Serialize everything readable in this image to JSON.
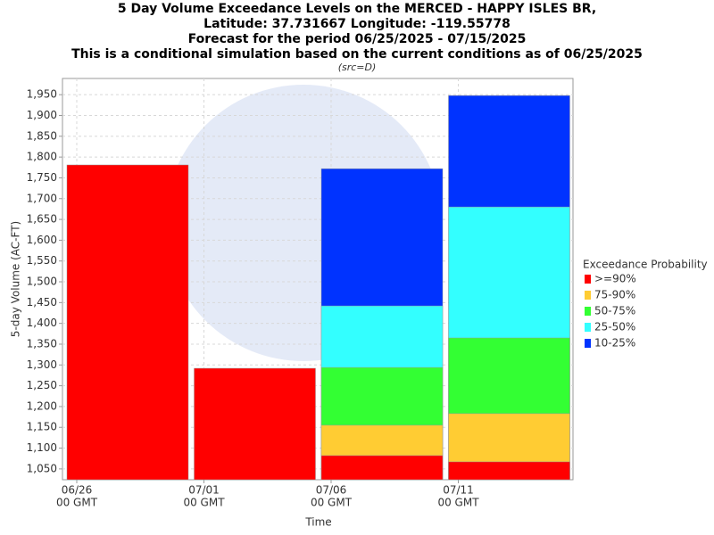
{
  "chart_data": {
    "type": "overlapping-bar",
    "title_lines": [
      "5 Day Volume Exceedance Levels on the MERCED - HAPPY ISLES BR,",
      "Latitude: 37.731667 Longitude: -119.55778",
      "Forecast for the period 06/25/2025 - 07/15/2025",
      "This is a conditional simulation based on the current conditions as of 06/25/2025"
    ],
    "subtitle": "(src=D)",
    "y_label": "5-day Volume (AC-FT)",
    "x_label": "Time",
    "legend_title": "Exceedance Probability",
    "xticks": [
      [
        "06/26",
        "00 GMT"
      ],
      [
        "07/01",
        "00 GMT"
      ],
      [
        "07/06",
        "00 GMT"
      ],
      [
        "07/11",
        "00 GMT"
      ]
    ],
    "categories": [
      null,
      null,
      null,
      null
    ],
    "series": [
      {
        "name": ">=90%",
        "color": "#ff0000",
        "values": [
          1781,
          1292,
          1082,
          1067
        ]
      },
      {
        "name": "75-90%",
        "color": "#ffcc33",
        "values": [
          null,
          null,
          1155,
          1183
        ]
      },
      {
        "name": "50-75%",
        "color": "#33ff33",
        "values": [
          null,
          null,
          1294,
          1365
        ]
      },
      {
        "name": "25-50%",
        "color": "#33ffff",
        "values": [
          null,
          null,
          1442,
          1680
        ]
      },
      {
        "name": "10-25%",
        "color": "#0033ff",
        "values": [
          null,
          null,
          1772,
          1948
        ]
      }
    ],
    "ylim": [
      1024,
      1989
    ],
    "yticks": [
      {
        "value": 1050,
        "label": "1,050"
      },
      {
        "value": 1100,
        "label": "1,100"
      },
      {
        "value": 1150,
        "label": "1,150"
      },
      {
        "value": 1200,
        "label": "1,200"
      },
      {
        "value": 1250,
        "label": "1,250"
      },
      {
        "value": 1300,
        "label": "1,300"
      },
      {
        "value": 1350,
        "label": "1,350"
      },
      {
        "value": 1400,
        "label": "1,400"
      },
      {
        "value": 1450,
        "label": "1,450"
      },
      {
        "value": 1500,
        "label": "1,500"
      },
      {
        "value": 1550,
        "label": "1,550"
      },
      {
        "value": 1600,
        "label": "1,600"
      },
      {
        "value": 1650,
        "label": "1,650"
      },
      {
        "value": 1700,
        "label": "1,700"
      },
      {
        "value": 1750,
        "label": "1,750"
      },
      {
        "value": 1800,
        "label": "1,800"
      },
      {
        "value": 1850,
        "label": "1,850"
      },
      {
        "value": 1900,
        "label": "1,900"
      },
      {
        "value": 1950,
        "label": "1,950"
      }
    ],
    "grid": true
  }
}
